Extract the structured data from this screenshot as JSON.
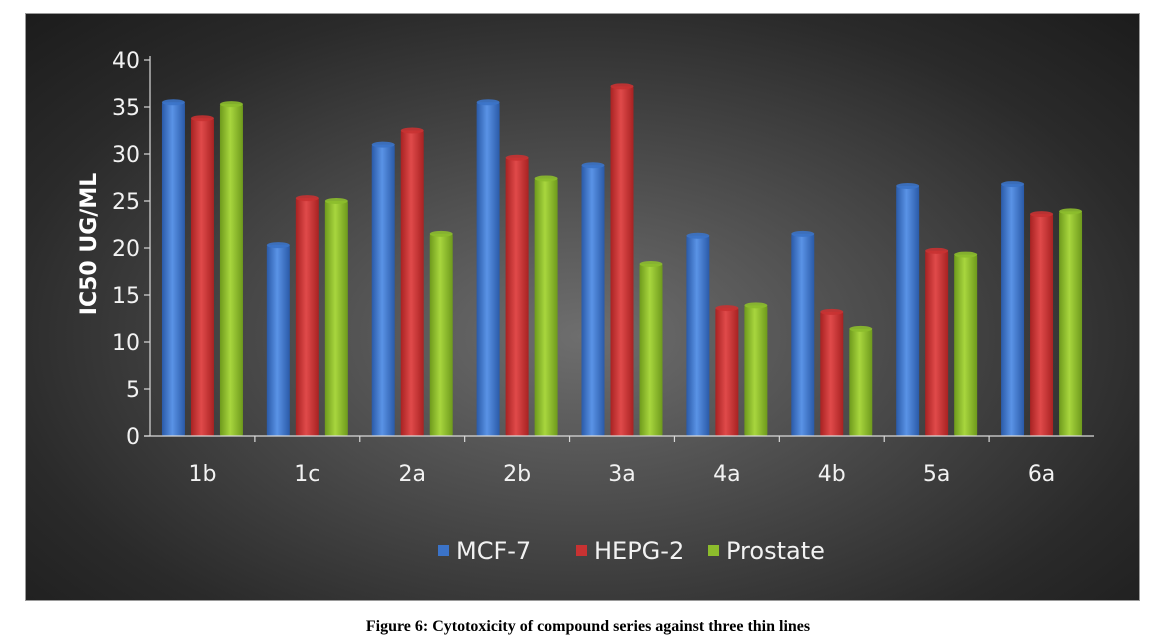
{
  "chart_data": {
    "type": "bar",
    "categories": [
      "1b",
      "1c",
      "2a",
      "2b",
      "3a",
      "4a",
      "4b",
      "5a",
      "6a"
    ],
    "series": [
      {
        "name": "MCF-7",
        "color": "#3b73c8",
        "values": [
          35.5,
          20.3,
          31.0,
          35.5,
          28.8,
          21.3,
          21.5,
          26.6,
          26.8
        ]
      },
      {
        "name": "HEPG-2",
        "color": "#c83232",
        "values": [
          33.8,
          25.3,
          32.5,
          29.6,
          37.2,
          13.6,
          13.2,
          19.7,
          23.6
        ]
      },
      {
        "name": "Prostate",
        "color": "#8cbc2c",
        "values": [
          35.3,
          25.0,
          21.5,
          27.4,
          18.3,
          13.9,
          11.4,
          19.3,
          23.9
        ]
      }
    ],
    "ylabel": "IC50 UG/ML",
    "ylim": [
      0,
      40
    ],
    "yticks": [
      0,
      5,
      10,
      15,
      20,
      25,
      30,
      35,
      40
    ],
    "legend_position": "bottom",
    "grid": false
  },
  "caption": "Figure 6: Cytotoxicity of compound series against three thin lines"
}
